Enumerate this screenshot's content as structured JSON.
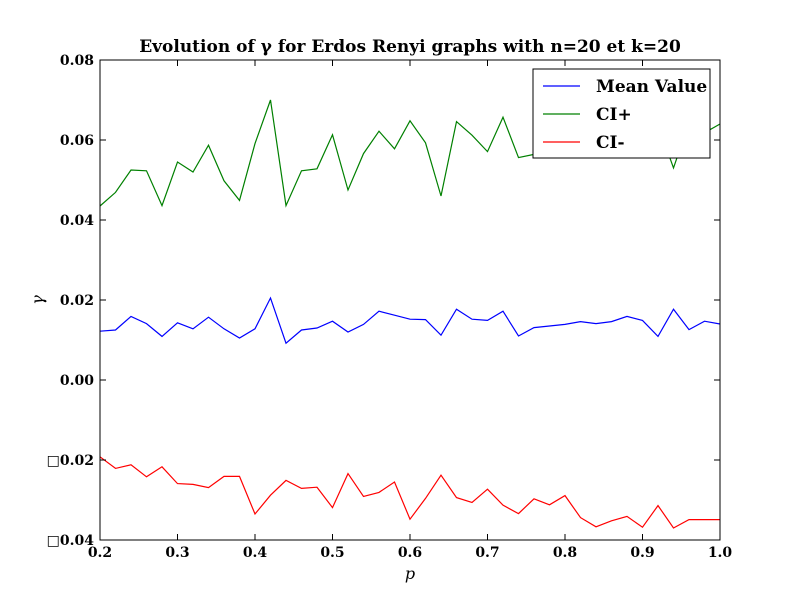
{
  "chart_data": {
    "type": "line",
    "title": "Evolution of γ for Erdos Renyi graphs with n=20 et k=20",
    "xlabel": "p",
    "ylabel": "γ",
    "xlim": [
      0.2,
      1.0
    ],
    "ylim": [
      -0.04,
      0.08
    ],
    "xticks": [
      0.2,
      0.3,
      0.4,
      0.5,
      0.6,
      0.7,
      0.8,
      0.9,
      1.0
    ],
    "xtick_labels": [
      "0.2",
      "0.3",
      "0.4",
      "0.5",
      "0.6",
      "0.7",
      "0.8",
      "0.9",
      "1.0"
    ],
    "yticks": [
      -0.04,
      -0.02,
      0.0,
      0.02,
      0.04,
      0.06,
      0.08
    ],
    "ytick_labels": [
      "□0.04",
      "□0.02",
      "0.00",
      "0.02",
      "0.04",
      "0.06",
      "0.08"
    ],
    "grid": false,
    "legend_position": "top-right",
    "x": [
      0.2,
      0.22,
      0.24,
      0.26,
      0.28,
      0.3,
      0.32,
      0.34,
      0.36,
      0.38,
      0.4,
      0.42,
      0.44,
      0.46,
      0.48,
      0.5,
      0.52,
      0.54,
      0.56,
      0.58,
      0.6,
      0.62,
      0.64,
      0.66,
      0.68,
      0.7,
      0.72,
      0.74,
      0.76,
      0.78,
      0.8,
      0.82,
      0.84,
      0.86,
      0.88,
      0.9,
      0.92,
      0.94,
      0.96,
      0.98,
      1.0
    ],
    "series": [
      {
        "name": "Mean Value",
        "color": "#0000ff",
        "values": [
          0.0122,
          0.0125,
          0.0159,
          0.0141,
          0.0109,
          0.0143,
          0.0128,
          0.0157,
          0.0128,
          0.0105,
          0.0128,
          0.0205,
          0.0092,
          0.0125,
          0.013,
          0.0147,
          0.012,
          0.0139,
          0.0172,
          0.0162,
          0.0152,
          0.0151,
          0.0112,
          0.0177,
          0.0152,
          0.0149,
          0.0172,
          0.011,
          0.0131,
          0.0135,
          0.0139,
          0.0146,
          0.0141,
          0.0146,
          0.0159,
          0.0149,
          0.0109,
          0.0177,
          0.0126,
          0.0147,
          0.014
        ]
      },
      {
        "name": "CI+",
        "color": "#008000",
        "values": [
          0.0435,
          0.0469,
          0.0525,
          0.0523,
          0.0436,
          0.0545,
          0.052,
          0.0587,
          0.0498,
          0.0449,
          0.0591,
          0.07,
          0.0436,
          0.0523,
          0.0528,
          0.0613,
          0.0475,
          0.0566,
          0.0622,
          0.0578,
          0.0648,
          0.0593,
          0.046,
          0.0646,
          0.0612,
          0.0571,
          0.0657,
          0.0556,
          0.0564,
          0.0567,
          0.0583,
          0.059,
          0.0575,
          0.0582,
          0.0624,
          0.0592,
          0.0638,
          0.053,
          0.0643,
          0.0618,
          0.064
        ]
      },
      {
        "name": "CI-",
        "color": "#ff0000",
        "values": [
          -0.0192,
          -0.0221,
          -0.0212,
          -0.0242,
          -0.0217,
          -0.0259,
          -0.0261,
          -0.0269,
          -0.0241,
          -0.0241,
          -0.0335,
          -0.0288,
          -0.0251,
          -0.0271,
          -0.0268,
          -0.0319,
          -0.0234,
          -0.0291,
          -0.0281,
          -0.0255,
          -0.0348,
          -0.0296,
          -0.0238,
          -0.0294,
          -0.0306,
          -0.0273,
          -0.0313,
          -0.0334,
          -0.0297,
          -0.0312,
          -0.0289,
          -0.0344,
          -0.0367,
          -0.0352,
          -0.0341,
          -0.0368,
          -0.0314,
          -0.037,
          -0.0349,
          -0.0349,
          -0.0349
        ]
      }
    ]
  }
}
